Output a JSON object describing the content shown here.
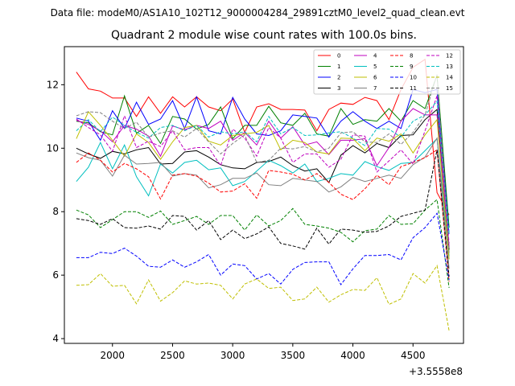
{
  "file_caption": "Data file: modeM0/AS1A10_102T12_9000004284_29891cztM0_level2_quad_clean.evt",
  "offset_label": "+3.5558e8",
  "chart_data": {
    "type": "line",
    "title": "Quadrant 2 module wise count rates with 100.0s bins.",
    "xlabel": "",
    "ylabel": "",
    "xlim": [
      1600,
      4920
    ],
    "ylim": [
      3.85,
      13.2
    ],
    "xticks": [
      2000,
      2500,
      3000,
      3500,
      4000,
      4500
    ],
    "yticks": [
      4,
      6,
      8,
      10,
      12
    ],
    "x": [
      1700,
      1800,
      1900,
      2000,
      2100,
      2200,
      2300,
      2400,
      2500,
      2600,
      2700,
      2800,
      2900,
      3000,
      3100,
      3200,
      3300,
      3400,
      3500,
      3600,
      3700,
      3800,
      3900,
      4000,
      4100,
      4200,
      4300,
      4400,
      4500,
      4600,
      4700,
      4800
    ],
    "legend_position": "top-right",
    "series": [
      {
        "name": "0",
        "color": "#ff0000",
        "dash": "solid",
        "values": [
          12.4,
          11.87,
          11.8,
          11.58,
          11.58,
          11.0,
          11.62,
          11.1,
          11.62,
          11.3,
          11.62,
          11.3,
          11.18,
          11.55,
          10.5,
          11.3,
          11.4,
          11.22,
          11.22,
          11.2,
          10.55,
          11.22,
          11.42,
          11.38,
          11.6,
          11.5,
          10.9,
          11.85,
          12.55,
          12.8,
          8.6,
          7.9
        ]
      },
      {
        "name": "1",
        "color": "#008000",
        "dash": "solid",
        "values": [
          10.85,
          10.8,
          10.52,
          10.42,
          11.65,
          10.47,
          10.72,
          10.15,
          11.0,
          10.92,
          10.6,
          10.75,
          11.3,
          10.3,
          10.72,
          10.72,
          11.32,
          10.8,
          10.72,
          11.1,
          10.45,
          10.38,
          11.25,
          10.75,
          10.9,
          10.85,
          11.25,
          10.85,
          11.5,
          11.25,
          12.3,
          7.5
        ]
      },
      {
        "name": "2",
        "color": "#0000ff",
        "dash": "solid",
        "values": [
          10.95,
          10.85,
          10.25,
          11.18,
          10.62,
          11.45,
          10.75,
          10.92,
          11.5,
          10.62,
          11.62,
          10.55,
          10.45,
          11.6,
          10.92,
          10.45,
          10.4,
          10.55,
          11.05,
          11.0,
          10.95,
          10.35,
          10.85,
          11.15,
          10.85,
          10.62,
          10.85,
          10.62,
          11.85,
          11.75,
          11.85,
          7.3
        ]
      },
      {
        "name": "3",
        "color": "#000000",
        "dash": "solid",
        "values": [
          10.0,
          9.82,
          9.68,
          9.9,
          9.82,
          9.95,
          10.02,
          9.5,
          9.52,
          9.88,
          9.92,
          9.72,
          9.48,
          9.38,
          9.35,
          9.55,
          9.58,
          9.72,
          9.45,
          9.28,
          9.35,
          8.92,
          9.78,
          10.08,
          9.85,
          10.15,
          10.02,
          10.4,
          10.42,
          10.9,
          11.22,
          6.8
        ]
      },
      {
        "name": "4",
        "color": "#bf00bf",
        "dash": "solid",
        "values": [
          10.88,
          10.75,
          10.55,
          10.2,
          10.72,
          10.6,
          10.38,
          9.75,
          10.7,
          10.58,
          10.72,
          10.62,
          10.85,
          10.25,
          10.5,
          10.1,
          10.85,
          10.32,
          10.68,
          10.1,
          10.2,
          9.8,
          10.25,
          10.25,
          10.3,
          9.45,
          10.02,
          10.85,
          11.25,
          11.05,
          11.05,
          6.9
        ]
      },
      {
        "name": "5",
        "color": "#00bfbf",
        "dash": "solid",
        "values": [
          8.95,
          9.4,
          10.18,
          9.35,
          10.1,
          9.1,
          8.5,
          9.5,
          9.22,
          9.55,
          9.62,
          9.32,
          9.38,
          8.82,
          8.95,
          9.28,
          9.62,
          9.45,
          9.22,
          9.5,
          8.95,
          9.05,
          9.2,
          9.15,
          9.58,
          9.42,
          9.3,
          9.52,
          9.55,
          9.92,
          10.3,
          6.6
        ]
      },
      {
        "name": "6",
        "color": "#bfbf00",
        "dash": "solid",
        "values": [
          10.3,
          11.15,
          10.72,
          10.25,
          9.75,
          10.45,
          10.18,
          9.65,
          10.2,
          10.65,
          10.72,
          10.22,
          10.1,
          10.4,
          10.45,
          10.5,
          10.72,
          9.95,
          10.25,
          10.18,
          9.88,
          9.82,
          10.32,
          10.3,
          9.92,
          10.32,
          10.22,
          10.45,
          9.85,
          10.42,
          10.9,
          6.5
        ]
      },
      {
        "name": "7",
        "color": "#808080",
        "dash": "solid",
        "values": [
          9.85,
          9.7,
          9.62,
          9.12,
          9.78,
          9.5,
          9.52,
          9.55,
          9.12,
          9.2,
          9.15,
          8.75,
          8.85,
          9.05,
          9.05,
          9.22,
          8.85,
          8.82,
          9.05,
          9.0,
          8.95,
          8.62,
          8.78,
          9.08,
          8.95,
          9.05,
          9.15,
          9.05,
          9.48,
          9.72,
          10.32,
          6.2
        ]
      },
      {
        "name": "8",
        "color": "#ff0000",
        "dash": "dashed",
        "values": [
          9.55,
          9.85,
          9.62,
          9.25,
          9.52,
          9.35,
          9.1,
          8.4,
          9.15,
          9.2,
          9.12,
          8.9,
          8.62,
          8.65,
          8.88,
          8.42,
          9.3,
          9.25,
          9.18,
          9.0,
          9.2,
          8.92,
          8.55,
          8.38,
          8.72,
          9.15,
          8.85,
          9.42,
          9.55,
          9.7,
          9.95,
          5.8
        ]
      },
      {
        "name": "9",
        "color": "#008000",
        "dash": "dashed",
        "values": [
          8.05,
          7.9,
          7.5,
          7.75,
          8.0,
          8.0,
          7.82,
          8.02,
          7.6,
          7.72,
          7.85,
          7.6,
          7.88,
          7.88,
          7.42,
          7.9,
          7.55,
          7.72,
          8.1,
          7.6,
          7.55,
          7.48,
          7.35,
          7.05,
          7.4,
          7.45,
          7.88,
          7.6,
          7.62,
          8.05,
          8.38,
          5.6
        ]
      },
      {
        "name": "10",
        "color": "#0000ff",
        "dash": "dashed",
        "values": [
          6.55,
          6.55,
          6.72,
          6.68,
          6.85,
          6.6,
          6.28,
          6.25,
          6.48,
          6.25,
          6.42,
          6.65,
          6.0,
          6.35,
          6.3,
          5.88,
          6.05,
          5.72,
          6.18,
          6.4,
          6.42,
          6.42,
          5.7,
          6.2,
          6.62,
          6.62,
          6.65,
          6.48,
          7.18,
          7.5,
          7.95,
          5.85
        ]
      },
      {
        "name": "11",
        "color": "#000000",
        "dash": "dashed",
        "values": [
          7.78,
          7.72,
          7.6,
          7.78,
          7.5,
          7.48,
          7.55,
          7.45,
          7.88,
          7.85,
          7.42,
          7.72,
          7.12,
          7.42,
          7.15,
          7.3,
          7.52,
          7.0,
          6.92,
          6.82,
          7.48,
          6.98,
          7.45,
          7.42,
          7.35,
          7.38,
          7.55,
          7.85,
          7.95,
          8.05,
          9.95,
          5.95
        ]
      },
      {
        "name": "12",
        "color": "#bf00bf",
        "dash": "dashed",
        "values": [
          10.92,
          10.65,
          10.42,
          9.9,
          11.02,
          10.02,
          10.22,
          10.05,
          10.55,
          9.95,
          10.02,
          10.02,
          9.45,
          10.6,
          10.32,
          9.75,
          10.65,
          10.32,
          9.55,
          9.82,
          9.82,
          9.4,
          9.65,
          10.42,
          10.38,
          9.25,
          9.6,
          9.95,
          9.5,
          10.55,
          11.65,
          7.0
        ]
      },
      {
        "name": "13",
        "color": "#00bfbf",
        "dash": "dashed",
        "values": [
          10.55,
          10.9,
          10.52,
          10.98,
          10.72,
          10.5,
          10.32,
          10.65,
          10.72,
          10.55,
          10.72,
          10.35,
          10.52,
          10.45,
          10.52,
          10.2,
          11.0,
          10.45,
          10.65,
          10.4,
          10.42,
          10.48,
          10.52,
          10.32,
          10.08,
          10.62,
          10.6,
          10.35,
          10.85,
          11.05,
          11.48,
          7.3
        ]
      },
      {
        "name": "14",
        "color": "#bfbf00",
        "dash": "dashed",
        "values": [
          5.68,
          5.7,
          6.05,
          5.65,
          5.68,
          5.1,
          5.85,
          5.18,
          5.45,
          5.82,
          5.72,
          5.75,
          5.68,
          5.25,
          5.72,
          5.88,
          5.58,
          5.62,
          5.2,
          5.25,
          5.62,
          5.15,
          5.38,
          5.55,
          5.52,
          5.92,
          5.08,
          5.25,
          6.05,
          5.75,
          6.3,
          4.25
        ]
      },
      {
        "name": "15",
        "color": "#808080",
        "dash": "dashed",
        "values": [
          11.02,
          11.15,
          11.12,
          10.85,
          10.62,
          10.82,
          10.35,
          10.48,
          10.55,
          10.35,
          10.62,
          10.2,
          9.82,
          10.15,
          10.42,
          9.55,
          9.62,
          10.0,
          9.98,
          10.05,
          9.88,
          10.0,
          10.48,
          10.52,
          10.2,
          10.18,
          10.45,
          10.12,
          10.5,
          11.05,
          12.32,
          6.7
        ]
      }
    ]
  }
}
